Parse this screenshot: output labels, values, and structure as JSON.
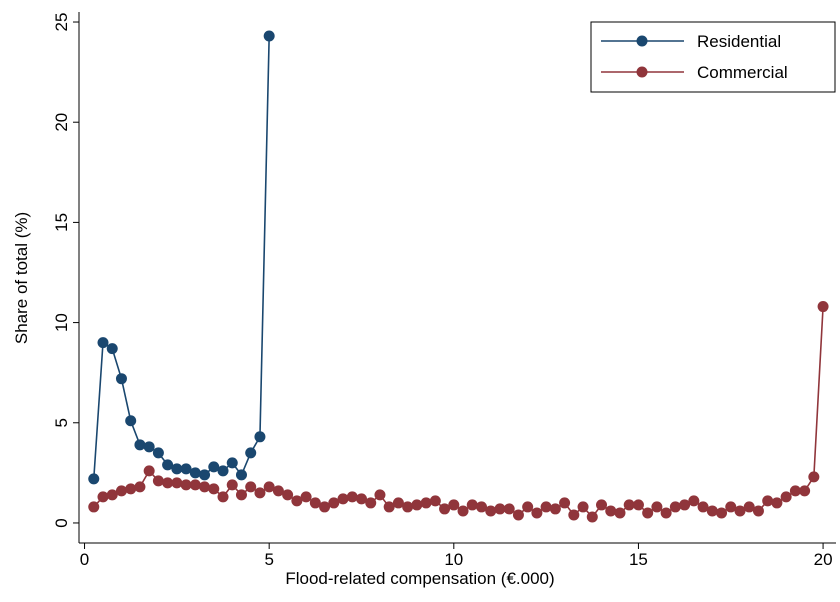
{
  "chart_data": {
    "type": "line",
    "xlabel": "Flood-related compensation (€.000)",
    "ylabel": "Share of total (%)",
    "xlim": [
      -0.15,
      20.35
    ],
    "ylim": [
      -1,
      25.5
    ],
    "xticks": [
      0,
      5,
      10,
      15,
      20
    ],
    "yticks": [
      0,
      5,
      10,
      15,
      20,
      25
    ],
    "legend": "upper right",
    "series": [
      {
        "name": "Residential",
        "color": "#1a476f",
        "x": [
          0.25,
          0.5,
          0.75,
          1,
          1.25,
          1.5,
          1.75,
          2,
          2.25,
          2.5,
          2.75,
          3,
          3.25,
          3.5,
          3.75,
          4,
          4.25,
          4.5,
          4.75,
          5
        ],
        "values": [
          2.2,
          9.0,
          8.7,
          7.2,
          5.1,
          3.9,
          3.8,
          3.5,
          2.9,
          2.7,
          2.7,
          2.5,
          2.4,
          2.8,
          2.6,
          3.0,
          2.4,
          3.5,
          4.3,
          24.3
        ]
      },
      {
        "name": "Commercial",
        "color": "#90353b",
        "x": [
          0.25,
          0.5,
          0.75,
          1,
          1.25,
          1.5,
          1.75,
          2,
          2.25,
          2.5,
          2.75,
          3,
          3.25,
          3.5,
          3.75,
          4,
          4.25,
          4.5,
          4.75,
          5,
          5.25,
          5.5,
          5.75,
          6,
          6.25,
          6.5,
          6.75,
          7,
          7.25,
          7.5,
          7.75,
          8,
          8.25,
          8.5,
          8.75,
          9,
          9.25,
          9.5,
          9.75,
          10,
          10.25,
          10.5,
          10.75,
          11,
          11.25,
          11.5,
          11.75,
          12,
          12.25,
          12.5,
          12.75,
          13,
          13.25,
          13.5,
          13.75,
          14,
          14.25,
          14.5,
          14.75,
          15,
          15.25,
          15.5,
          15.75,
          16,
          16.25,
          16.5,
          16.75,
          17,
          17.25,
          17.5,
          17.75,
          18,
          18.25,
          18.5,
          18.75,
          19,
          19.25,
          19.5,
          19.75,
          20
        ],
        "values": [
          0.8,
          1.3,
          1.4,
          1.6,
          1.7,
          1.8,
          2.6,
          2.1,
          2.0,
          2.0,
          1.9,
          1.9,
          1.8,
          1.7,
          1.3,
          1.9,
          1.4,
          1.8,
          1.5,
          1.8,
          1.6,
          1.4,
          1.1,
          1.3,
          1.0,
          0.8,
          1.0,
          1.2,
          1.3,
          1.2,
          1.0,
          1.4,
          0.8,
          1.0,
          0.8,
          0.9,
          1.0,
          1.1,
          0.7,
          0.9,
          0.6,
          0.9,
          0.8,
          0.6,
          0.7,
          0.7,
          0.4,
          0.8,
          0.5,
          0.8,
          0.7,
          1.0,
          0.4,
          0.8,
          0.3,
          0.9,
          0.6,
          0.5,
          0.9,
          0.9,
          0.5,
          0.8,
          0.5,
          0.8,
          0.9,
          1.1,
          0.8,
          0.6,
          0.5,
          0.8,
          0.6,
          0.8,
          0.6,
          1.1,
          1.0,
          1.3,
          1.6,
          1.6,
          2.3,
          10.8
        ]
      }
    ]
  }
}
